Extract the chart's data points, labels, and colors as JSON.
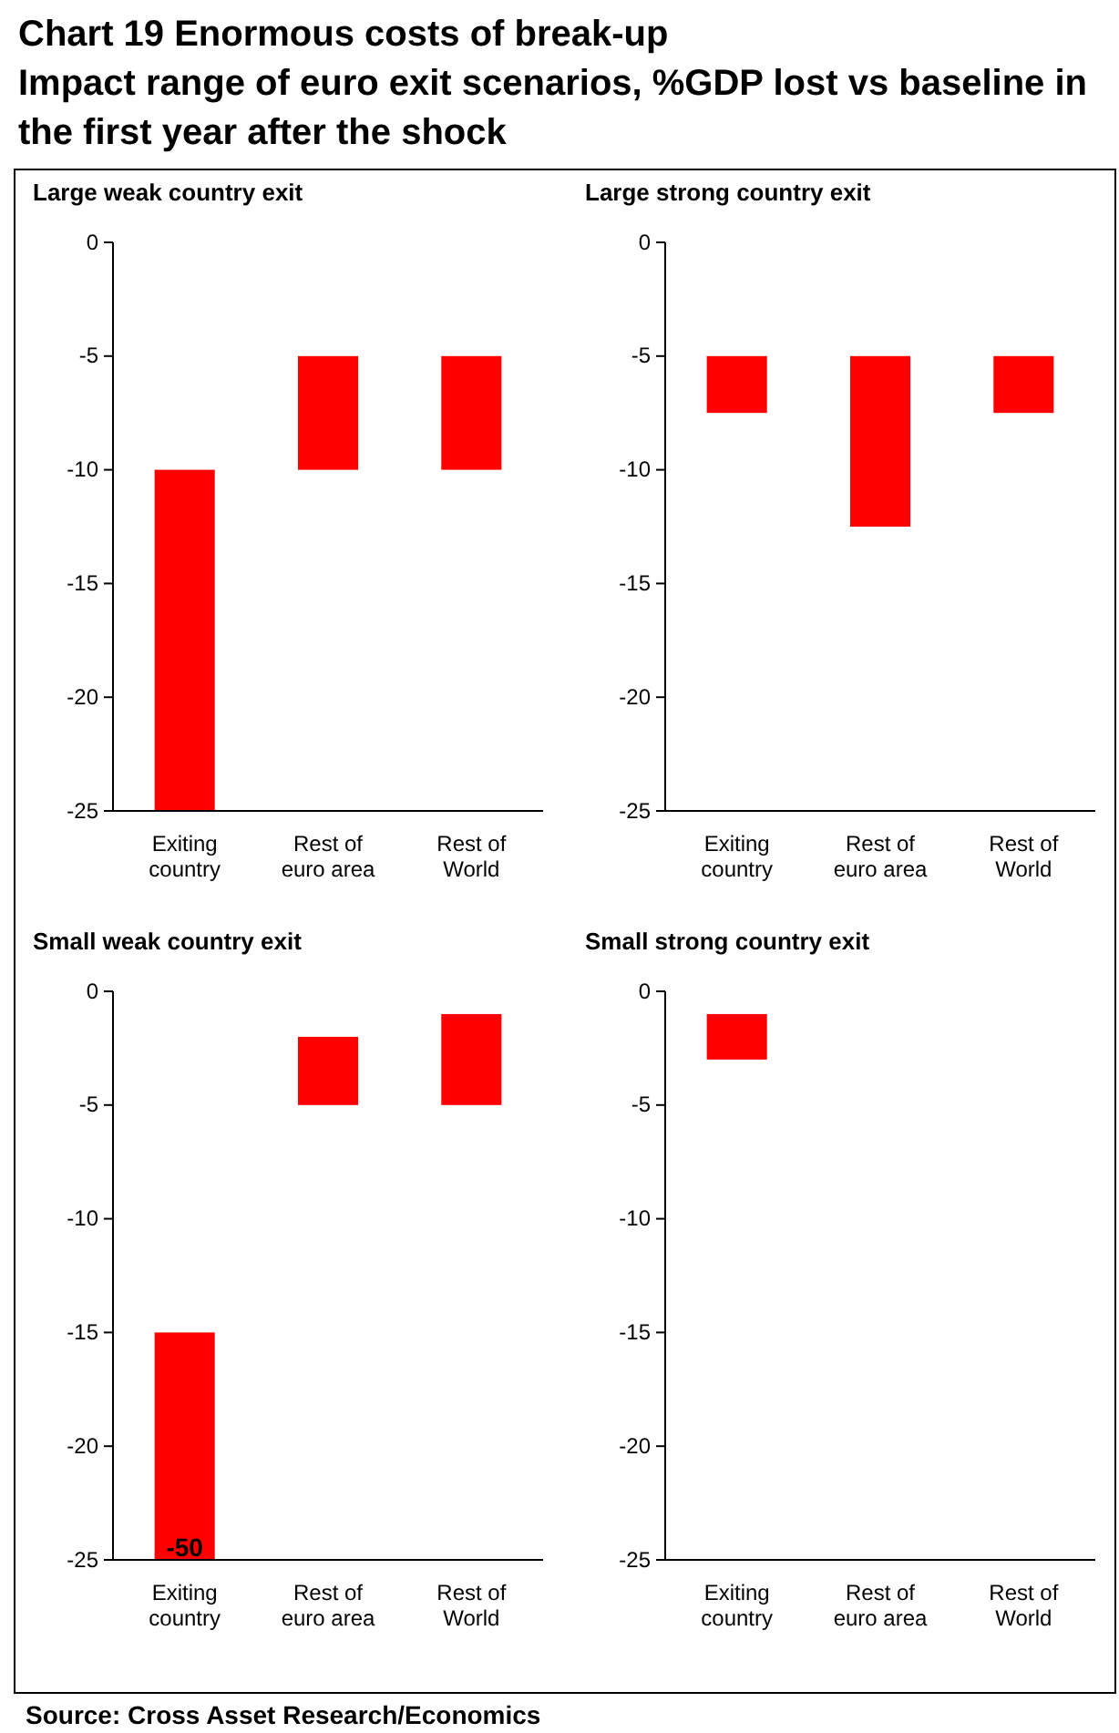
{
  "chart_data": [
    {
      "type": "bar",
      "title": "Large weak country exit",
      "categories": [
        "Exiting country",
        "Rest of euro area",
        "Rest of World"
      ],
      "base": [
        -10,
        -5,
        -5
      ],
      "values": [
        -15,
        -5,
        -5
      ],
      "color": "#ff0000",
      "ylim": [
        -25,
        0
      ],
      "yticks": [
        0,
        -5,
        -10,
        -15,
        -20,
        -25
      ],
      "annotations": [
        "Chart 19 Enormous costs of break-up",
        "Impact range of euro exit scenarios, %GDP lost vs baseline in the first year after the shock"
      ]
    },
    {
      "type": "bar",
      "title": "Large strong country exit",
      "categories": [
        "Exiting country",
        "Rest of euro area",
        "Rest of World"
      ],
      "base": [
        -5,
        -5,
        -5
      ],
      "values": [
        -2.5,
        -7.5,
        -2.5
      ],
      "color": "#ff0000",
      "ylim": [
        -25,
        0
      ],
      "yticks": [
        0,
        -5,
        -10,
        -15,
        -20,
        -25
      ]
    },
    {
      "type": "bar",
      "title": "Small weak country exit",
      "categories": [
        "Exiting country",
        "Rest of euro area",
        "Rest of World"
      ],
      "base": [
        -15,
        -2,
        -1
      ],
      "values": [
        -10,
        -3,
        -4
      ],
      "color": "#ff0000",
      "ylim": [
        -25,
        0
      ],
      "yticks": [
        0,
        -5,
        -10,
        -15,
        -20,
        -25
      ],
      "annotations": [
        {
          "text": "-50",
          "x": "Exiting country",
          "y": -25
        }
      ]
    },
    {
      "type": "bar",
      "title": "Small strong country exit",
      "categories": [
        "Exiting country",
        "Rest of euro area",
        "Rest of World"
      ],
      "base": [
        -1,
        null,
        null
      ],
      "values": [
        -2,
        null,
        null
      ],
      "color": "#ff0000",
      "ylim": [
        -25,
        0
      ],
      "yticks": [
        0,
        -5,
        -10,
        -15,
        -20,
        -25
      ],
      "annotations": [
        "Source: Cross Asset Research/Economics"
      ]
    }
  ]
}
